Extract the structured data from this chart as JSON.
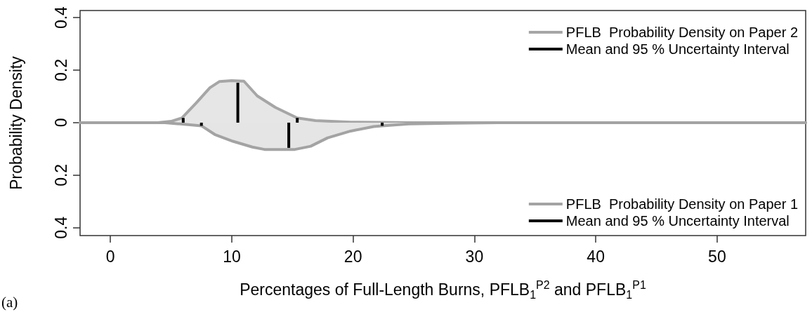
{
  "chart_data": {
    "type": "line",
    "xlabel": "Percentages of Full-Length Burns, PFLB$_{1}$$^{P2}$ and PFLB$_{1}$$^{P1}$",
    "ylabel": "Probability Density",
    "annotations": [
      "(a)"
    ],
    "xlim": [
      -2.5,
      57.3
    ],
    "xticks": [
      0,
      10,
      20,
      30,
      40,
      50
    ],
    "ylim": [
      -0.43,
      0.427
    ],
    "yticks": [
      {
        "value": -0.4,
        "label": "0.4"
      },
      {
        "value": -0.2,
        "label": "0.2"
      },
      0,
      {
        "value": 0.2,
        "label": "0.2"
      },
      {
        "value": 0.4,
        "label": "0.4"
      }
    ],
    "grid": false,
    "legend": "right",
    "marker": "none",
    "line_style": "solid",
    "series": [
      {
        "type": "area",
        "name": "PFLB  Probability Density on Paper 2",
        "color": "#a6a6a6",
        "x": [
          -2.5,
          3.9,
          5.0,
          5.9,
          7.07,
          8.2,
          9.0,
          10.0,
          11.0,
          12.1,
          13.6,
          15.4,
          16.9,
          19.8,
          25,
          57.3
        ],
        "values": [
          0,
          0,
          0.005,
          0.018,
          0.075,
          0.133,
          0.157,
          0.16,
          0.158,
          0.102,
          0.058,
          0.018,
          0.008,
          0.002,
          0,
          0
        ]
      },
      {
        "name": "Mean and 95 % Uncertainty Interval",
        "color": "#000000",
        "x": [
          10.5,
          10.5
        ],
        "values": [
          0,
          0.152
        ]
      },
      {
        "color": "#000000",
        "x": [
          6.0,
          6.0
        ],
        "values": [
          0,
          0.018
        ]
      },
      {
        "color": "#000000",
        "x": [
          15.4,
          15.4
        ],
        "values": [
          0,
          0.018
        ]
      },
      {
        "type": "area",
        "name": "PFLB  Probability Density on Paper 1",
        "color": "#a3a3a3",
        "x": [
          -2.5,
          4.5,
          5.5,
          7.5,
          8.6,
          10.1,
          11.7,
          12.7,
          15.2,
          16.5,
          17.9,
          19.8,
          21.7,
          22.4,
          24.6,
          28,
          32,
          57.3
        ],
        "values": [
          0,
          0,
          -0.004,
          -0.012,
          -0.045,
          -0.071,
          -0.093,
          -0.102,
          -0.102,
          -0.09,
          -0.058,
          -0.032,
          -0.015,
          -0.012,
          -0.005,
          -0.002,
          0,
          0
        ]
      },
      {
        "name": "Mean and 95 % Uncertainty Interval",
        "color": "#000000",
        "x": [
          14.7,
          14.7
        ],
        "values": [
          0,
          -0.096
        ]
      },
      {
        "color": "#000000",
        "x": [
          7.5,
          7.5
        ],
        "values": [
          0,
          -0.012
        ]
      },
      {
        "color": "#000000",
        "x": [
          22.4,
          22.4
        ],
        "values": [
          0,
          -0.012
        ]
      }
    ]
  }
}
